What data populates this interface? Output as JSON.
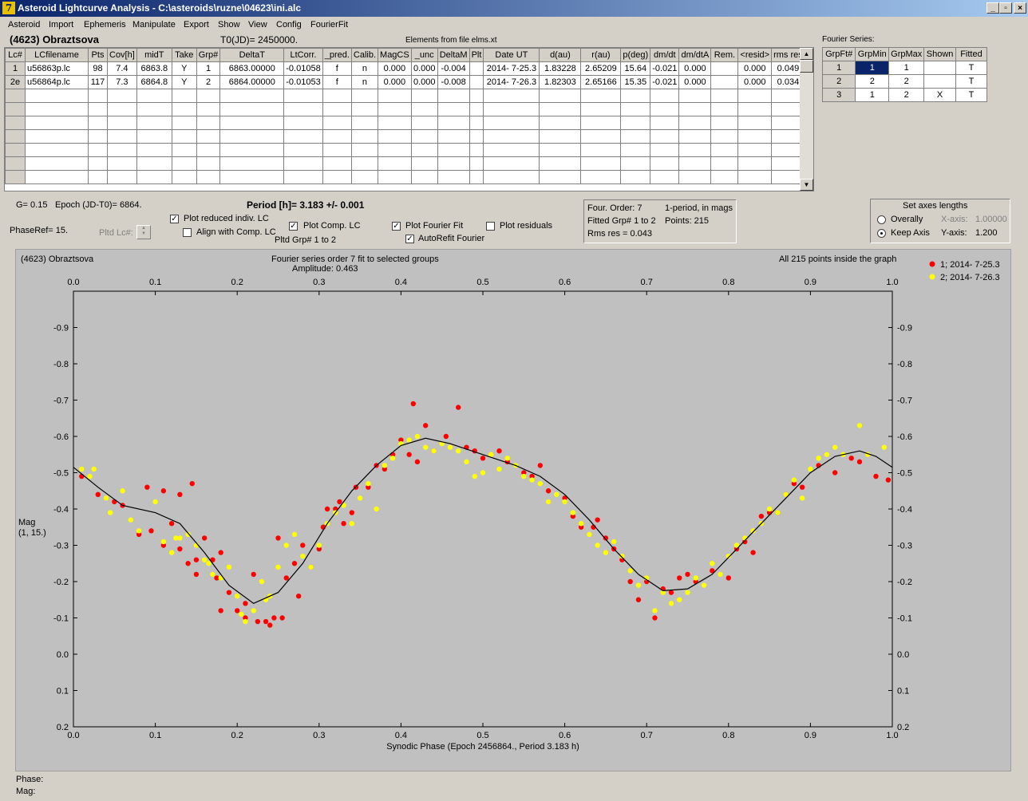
{
  "window": {
    "title": "Asteroid Lightcurve Analysis - C:\\asteroids\\ruzne\\04623\\ini.alc",
    "app_icon": "7",
    "minimize_label": "_",
    "maximize_label": "▫",
    "close_label": "×"
  },
  "menu": [
    "Asteroid",
    "Import",
    "Ephemeris",
    "Manipulate",
    "Export",
    "Show",
    "View",
    "Config",
    "FourierFit"
  ],
  "header": {
    "asteroid": "(4623) Obraztsova",
    "t0": "T0(JD)= 2450000.",
    "elements": "Elements from file elms.xt",
    "fourier_title": "Fourier Series:"
  },
  "lc_table": {
    "columns": [
      "Lc#",
      "LCfilename",
      "Pts",
      "Cov[h]",
      "midT",
      "Take",
      "Grp#",
      "DeltaT",
      "LtCorr.",
      "_pred.",
      "Calib.",
      "MagCS",
      "_unc",
      "DeltaM",
      "Plt",
      "Date UT",
      "d(au)",
      "r(au)",
      "p(deg)",
      "dm/dt",
      "dm/dtA",
      "Rem.",
      "<resid>",
      "rms res"
    ],
    "rows": [
      [
        "1",
        "u56863p.lc",
        "98",
        "7.4",
        "6863.8",
        "Y",
        "1",
        "6863.00000",
        "-0.01058",
        "f",
        "n",
        "0.000",
        "0.000",
        "-0.004",
        "",
        "2014- 7-25.3",
        "1.83228",
        "2.65209",
        "15.64",
        "-0.021",
        "0.000",
        "",
        "0.000",
        "0.049"
      ],
      [
        "2e",
        "u56864p.lc",
        "117",
        "7.3",
        "6864.8",
        "Y",
        "2",
        "6864.00000",
        "-0.01053",
        "f",
        "n",
        "0.000",
        "0.000",
        "-0.008",
        "",
        "2014- 7-26.3",
        "1.82303",
        "2.65166",
        "15.35",
        "-0.021",
        "0.000",
        "",
        "0.000",
        "0.034"
      ]
    ]
  },
  "fourier_table": {
    "columns": [
      "GrpFt#",
      "GrpMin",
      "GrpMax",
      "Shown",
      "Fitted"
    ],
    "rows": [
      [
        "1",
        "1",
        "1",
        "",
        "T"
      ],
      [
        "2",
        "2",
        "2",
        "",
        "T"
      ],
      [
        "3",
        "1",
        "2",
        "X",
        "T"
      ]
    ]
  },
  "controls": {
    "g": "G= 0.15",
    "epoch": "Epoch (JD-T0)= 6864.",
    "period": "Period [h]= 3.183 +/- 0.001",
    "phaseref": "PhaseRef= 15.",
    "pltd_lc": "Pltd Lc#:",
    "plot_reduced": "Plot reduced indiv. LC",
    "align_comp": "Align with Comp. LC",
    "plot_comp": "Plot Comp. LC",
    "pltd_grp": "Pltd Grp#  1   to   2",
    "plot_fourier": "Plot Fourier Fit",
    "autorefit": "AutoRefit Fourier",
    "plot_residuals": "Plot residuals",
    "check_mark": "✓"
  },
  "fit_info": {
    "order": "Four. Order:  7",
    "one_period": "1-period, in mags",
    "fitted": "Fitted Grp# 1 to 2",
    "points": "Points: 215",
    "rms": "Rms res     = 0.043"
  },
  "axes_box": {
    "title": "Set axes lengths",
    "overally": "Overally",
    "keep_axis": "Keep Axis",
    "x_label": "X-axis:",
    "x_value": "1.00000",
    "y_label": "Y-axis:",
    "y_value": "1.200"
  },
  "plot": {
    "name": "(4623) Obraztsova",
    "title": "Fourier series order 7 fit to selected groups",
    "amplitude": "Amplitude: 0.463",
    "inside": "All 215 points inside the graph",
    "ylabel1": "Mag",
    "ylabel2": "(1, 15.)",
    "status_phase": "Phase:",
    "status_mag": "Mag:"
  },
  "chart_data": {
    "type": "scatter",
    "xlabel": "Synodic Phase (Epoch 2456864., Period 3.183 h)",
    "ylabel": "Mag (1, 15.)",
    "xlim": [
      0,
      1
    ],
    "ylim": [
      0.2,
      -1.0
    ],
    "y_inverted": true,
    "grid": false,
    "legend_position": "top-right",
    "x_ticks": [
      "0.0",
      "0.1",
      "0.2",
      "0.3",
      "0.4",
      "0.5",
      "0.6",
      "0.7",
      "0.8",
      "0.9",
      "1.0"
    ],
    "y_ticks": [
      "-0.9",
      "-0.8",
      "-0.7",
      "-0.6",
      "-0.5",
      "-0.4",
      "-0.3",
      "-0.2",
      "-0.1",
      "0.0",
      "0.1",
      "0.2"
    ],
    "series": [
      {
        "name": "1; 2014- 7-25.3",
        "color": "#ff0000",
        "points": [
          [
            0.01,
            -0.49
          ],
          [
            0.03,
            -0.44
          ],
          [
            0.05,
            -0.42
          ],
          [
            0.06,
            -0.41
          ],
          [
            0.08,
            -0.33
          ],
          [
            0.09,
            -0.46
          ],
          [
            0.095,
            -0.34
          ],
          [
            0.11,
            -0.45
          ],
          [
            0.11,
            -0.3
          ],
          [
            0.12,
            -0.36
          ],
          [
            0.13,
            -0.44
          ],
          [
            0.13,
            -0.29
          ],
          [
            0.14,
            -0.25
          ],
          [
            0.145,
            -0.47
          ],
          [
            0.15,
            -0.26
          ],
          [
            0.15,
            -0.22
          ],
          [
            0.16,
            -0.32
          ],
          [
            0.17,
            -0.26
          ],
          [
            0.175,
            -0.21
          ],
          [
            0.18,
            -0.28
          ],
          [
            0.18,
            -0.12
          ],
          [
            0.19,
            -0.17
          ],
          [
            0.2,
            -0.12
          ],
          [
            0.21,
            -0.14
          ],
          [
            0.21,
            -0.1
          ],
          [
            0.22,
            -0.22
          ],
          [
            0.225,
            -0.09
          ],
          [
            0.235,
            -0.09
          ],
          [
            0.24,
            -0.08
          ],
          [
            0.245,
            -0.1
          ],
          [
            0.25,
            -0.32
          ],
          [
            0.255,
            -0.1
          ],
          [
            0.26,
            -0.21
          ],
          [
            0.27,
            -0.25
          ],
          [
            0.275,
            -0.16
          ],
          [
            0.28,
            -0.3
          ],
          [
            0.29,
            -0.24
          ],
          [
            0.3,
            -0.29
          ],
          [
            0.305,
            -0.35
          ],
          [
            0.31,
            -0.4
          ],
          [
            0.32,
            -0.4
          ],
          [
            0.325,
            -0.42
          ],
          [
            0.33,
            -0.36
          ],
          [
            0.34,
            -0.39
          ],
          [
            0.345,
            -0.46
          ],
          [
            0.36,
            -0.46
          ],
          [
            0.37,
            -0.52
          ],
          [
            0.38,
            -0.51
          ],
          [
            0.39,
            -0.55
          ],
          [
            0.4,
            -0.59
          ],
          [
            0.41,
            -0.55
          ],
          [
            0.415,
            -0.69
          ],
          [
            0.42,
            -0.53
          ],
          [
            0.43,
            -0.63
          ],
          [
            0.44,
            -0.56
          ],
          [
            0.455,
            -0.6
          ],
          [
            0.47,
            -0.68
          ],
          [
            0.48,
            -0.57
          ],
          [
            0.49,
            -0.56
          ],
          [
            0.5,
            -0.54
          ],
          [
            0.52,
            -0.56
          ],
          [
            0.53,
            -0.53
          ],
          [
            0.55,
            -0.5
          ],
          [
            0.56,
            -0.49
          ],
          [
            0.57,
            -0.52
          ],
          [
            0.58,
            -0.45
          ],
          [
            0.6,
            -0.43
          ],
          [
            0.61,
            -0.38
          ],
          [
            0.62,
            -0.35
          ],
          [
            0.635,
            -0.35
          ],
          [
            0.64,
            -0.37
          ],
          [
            0.65,
            -0.32
          ],
          [
            0.66,
            -0.29
          ],
          [
            0.67,
            -0.26
          ],
          [
            0.68,
            -0.2
          ],
          [
            0.69,
            -0.15
          ],
          [
            0.7,
            -0.2
          ],
          [
            0.71,
            -0.1
          ],
          [
            0.72,
            -0.18
          ],
          [
            0.73,
            -0.17
          ],
          [
            0.74,
            -0.21
          ],
          [
            0.75,
            -0.22
          ],
          [
            0.76,
            -0.2
          ],
          [
            0.78,
            -0.23
          ],
          [
            0.8,
            -0.21
          ],
          [
            0.81,
            -0.29
          ],
          [
            0.82,
            -0.31
          ],
          [
            0.83,
            -0.28
          ],
          [
            0.84,
            -0.38
          ],
          [
            0.85,
            -0.39
          ],
          [
            0.86,
            -0.39
          ],
          [
            0.87,
            -0.44
          ],
          [
            0.88,
            -0.47
          ],
          [
            0.89,
            -0.46
          ],
          [
            0.91,
            -0.52
          ],
          [
            0.93,
            -0.5
          ],
          [
            0.95,
            -0.54
          ],
          [
            0.96,
            -0.53
          ],
          [
            0.98,
            -0.49
          ],
          [
            0.995,
            -0.48
          ]
        ]
      },
      {
        "name": "2; 2014- 7-26.3",
        "color": "#ffff00",
        "points": [
          [
            0.01,
            -0.51
          ],
          [
            0.02,
            -0.49
          ],
          [
            0.025,
            -0.51
          ],
          [
            0.04,
            -0.43
          ],
          [
            0.045,
            -0.39
          ],
          [
            0.06,
            -0.45
          ],
          [
            0.07,
            -0.37
          ],
          [
            0.08,
            -0.34
          ],
          [
            0.1,
            -0.42
          ],
          [
            0.11,
            -0.31
          ],
          [
            0.12,
            -0.28
          ],
          [
            0.125,
            -0.32
          ],
          [
            0.13,
            -0.32
          ],
          [
            0.14,
            -0.33
          ],
          [
            0.15,
            -0.3
          ],
          [
            0.16,
            -0.26
          ],
          [
            0.165,
            -0.25
          ],
          [
            0.17,
            -0.22
          ],
          [
            0.18,
            -0.21
          ],
          [
            0.19,
            -0.24
          ],
          [
            0.2,
            -0.16
          ],
          [
            0.205,
            -0.11
          ],
          [
            0.21,
            -0.09
          ],
          [
            0.22,
            -0.12
          ],
          [
            0.23,
            -0.2
          ],
          [
            0.235,
            -0.15
          ],
          [
            0.24,
            -0.16
          ],
          [
            0.25,
            -0.24
          ],
          [
            0.26,
            -0.3
          ],
          [
            0.27,
            -0.33
          ],
          [
            0.28,
            -0.27
          ],
          [
            0.29,
            -0.24
          ],
          [
            0.3,
            -0.3
          ],
          [
            0.31,
            -0.36
          ],
          [
            0.32,
            -0.39
          ],
          [
            0.33,
            -0.41
          ],
          [
            0.34,
            -0.36
          ],
          [
            0.35,
            -0.43
          ],
          [
            0.36,
            -0.47
          ],
          [
            0.37,
            -0.4
          ],
          [
            0.38,
            -0.52
          ],
          [
            0.39,
            -0.54
          ],
          [
            0.4,
            -0.58
          ],
          [
            0.41,
            -0.59
          ],
          [
            0.42,
            -0.6
          ],
          [
            0.43,
            -0.57
          ],
          [
            0.44,
            -0.56
          ],
          [
            0.45,
            -0.58
          ],
          [
            0.46,
            -0.57
          ],
          [
            0.47,
            -0.56
          ],
          [
            0.48,
            -0.53
          ],
          [
            0.49,
            -0.49
          ],
          [
            0.5,
            -0.5
          ],
          [
            0.51,
            -0.55
          ],
          [
            0.52,
            -0.51
          ],
          [
            0.53,
            -0.54
          ],
          [
            0.54,
            -0.52
          ],
          [
            0.55,
            -0.49
          ],
          [
            0.56,
            -0.48
          ],
          [
            0.57,
            -0.47
          ],
          [
            0.58,
            -0.42
          ],
          [
            0.59,
            -0.44
          ],
          [
            0.6,
            -0.42
          ],
          [
            0.61,
            -0.39
          ],
          [
            0.62,
            -0.36
          ],
          [
            0.63,
            -0.33
          ],
          [
            0.64,
            -0.3
          ],
          [
            0.65,
            -0.28
          ],
          [
            0.66,
            -0.31
          ],
          [
            0.67,
            -0.27
          ],
          [
            0.68,
            -0.23
          ],
          [
            0.69,
            -0.19
          ],
          [
            0.7,
            -0.21
          ],
          [
            0.71,
            -0.12
          ],
          [
            0.72,
            -0.17
          ],
          [
            0.73,
            -0.14
          ],
          [
            0.74,
            -0.15
          ],
          [
            0.75,
            -0.17
          ],
          [
            0.76,
            -0.21
          ],
          [
            0.77,
            -0.19
          ],
          [
            0.78,
            -0.25
          ],
          [
            0.79,
            -0.22
          ],
          [
            0.8,
            -0.27
          ],
          [
            0.81,
            -0.3
          ],
          [
            0.82,
            -0.32
          ],
          [
            0.83,
            -0.34
          ],
          [
            0.84,
            -0.36
          ],
          [
            0.85,
            -0.4
          ],
          [
            0.86,
            -0.39
          ],
          [
            0.87,
            -0.44
          ],
          [
            0.88,
            -0.48
          ],
          [
            0.89,
            -0.43
          ],
          [
            0.9,
            -0.51
          ],
          [
            0.91,
            -0.54
          ],
          [
            0.92,
            -0.55
          ],
          [
            0.93,
            -0.57
          ],
          [
            0.94,
            -0.55
          ],
          [
            0.96,
            -0.63
          ],
          [
            0.97,
            -0.55
          ],
          [
            0.99,
            -0.57
          ]
        ]
      }
    ],
    "fit_curve": [
      [
        0.0,
        -0.515
      ],
      [
        0.03,
        -0.46
      ],
      [
        0.06,
        -0.41
      ],
      [
        0.1,
        -0.39
      ],
      [
        0.13,
        -0.36
      ],
      [
        0.16,
        -0.28
      ],
      [
        0.19,
        -0.19
      ],
      [
        0.22,
        -0.14
      ],
      [
        0.25,
        -0.17
      ],
      [
        0.28,
        -0.25
      ],
      [
        0.31,
        -0.36
      ],
      [
        0.34,
        -0.45
      ],
      [
        0.37,
        -0.52
      ],
      [
        0.4,
        -0.575
      ],
      [
        0.43,
        -0.595
      ],
      [
        0.46,
        -0.58
      ],
      [
        0.5,
        -0.55
      ],
      [
        0.54,
        -0.52
      ],
      [
        0.57,
        -0.49
      ],
      [
        0.6,
        -0.44
      ],
      [
        0.63,
        -0.37
      ],
      [
        0.66,
        -0.29
      ],
      [
        0.69,
        -0.22
      ],
      [
        0.72,
        -0.175
      ],
      [
        0.75,
        -0.18
      ],
      [
        0.78,
        -0.22
      ],
      [
        0.81,
        -0.29
      ],
      [
        0.84,
        -0.36
      ],
      [
        0.87,
        -0.43
      ],
      [
        0.9,
        -0.5
      ],
      [
        0.93,
        -0.545
      ],
      [
        0.96,
        -0.56
      ],
      [
        0.98,
        -0.545
      ],
      [
        1.0,
        -0.515
      ]
    ]
  }
}
